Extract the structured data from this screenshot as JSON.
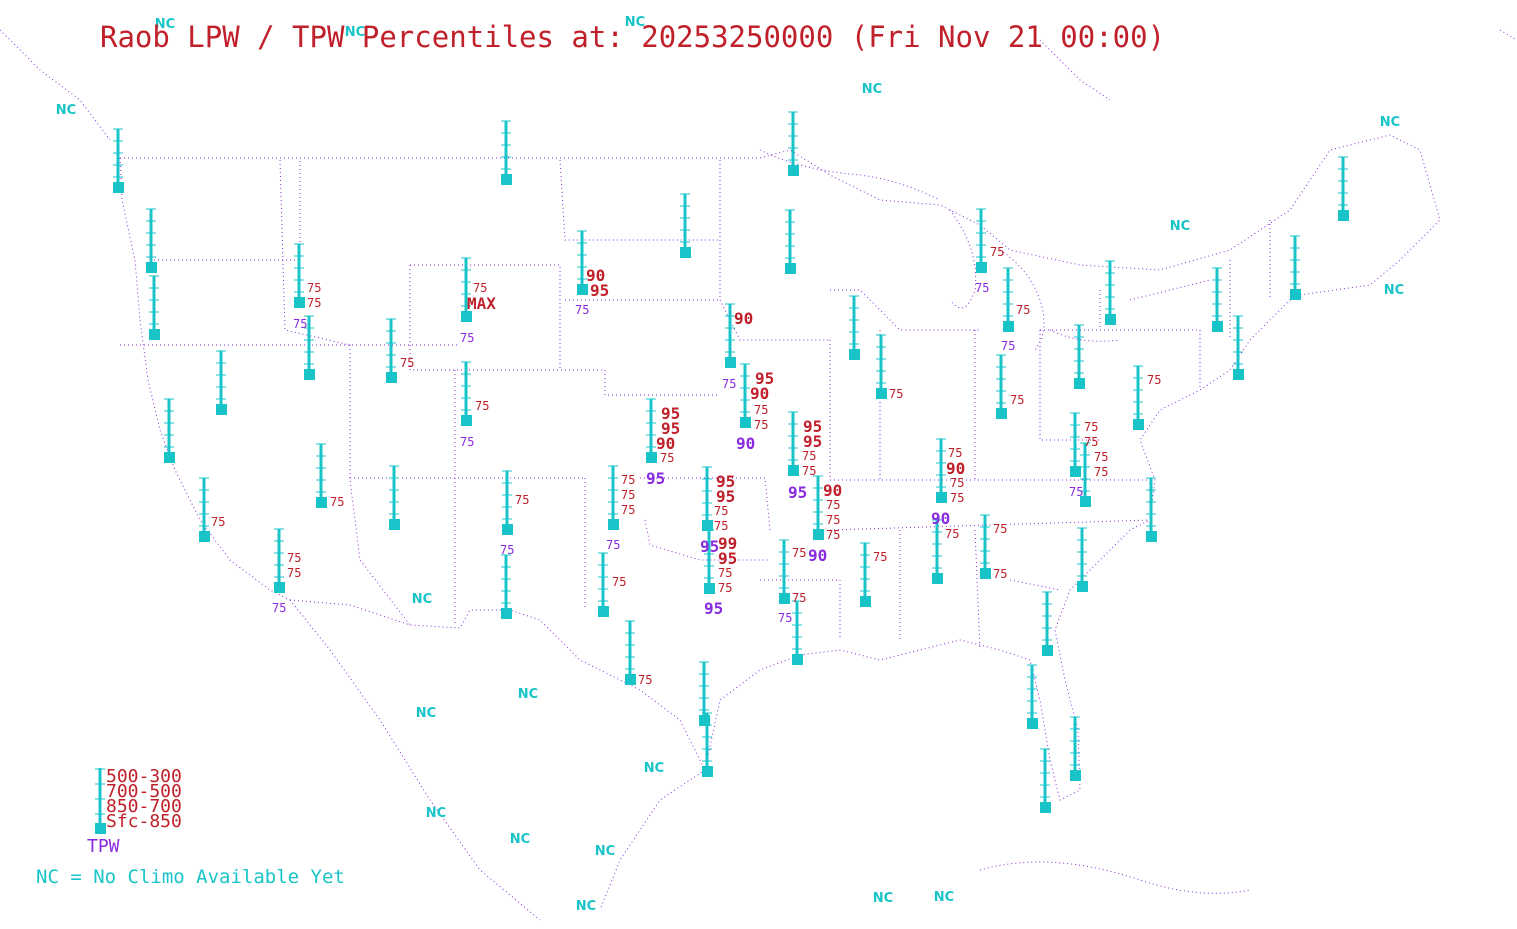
{
  "title": "Raob LPW / TPW Percentiles at: 20253250000 (Fri Nov 21 00:00)",
  "legend": {
    "layers": [
      "500-300",
      "700-500",
      "850-700",
      "Sfc-850"
    ],
    "tpw_label": "TPW",
    "nc_note": "NC = No Climo Available Yet"
  },
  "colors": {
    "station": "#19c4c8",
    "layer_text": "#c0202a",
    "tpw_text": "#8a2be2",
    "nc_text": "#19c4c8",
    "borders": "#8a2be2"
  },
  "nc_text": "NC",
  "max_text": "MAX"
}
